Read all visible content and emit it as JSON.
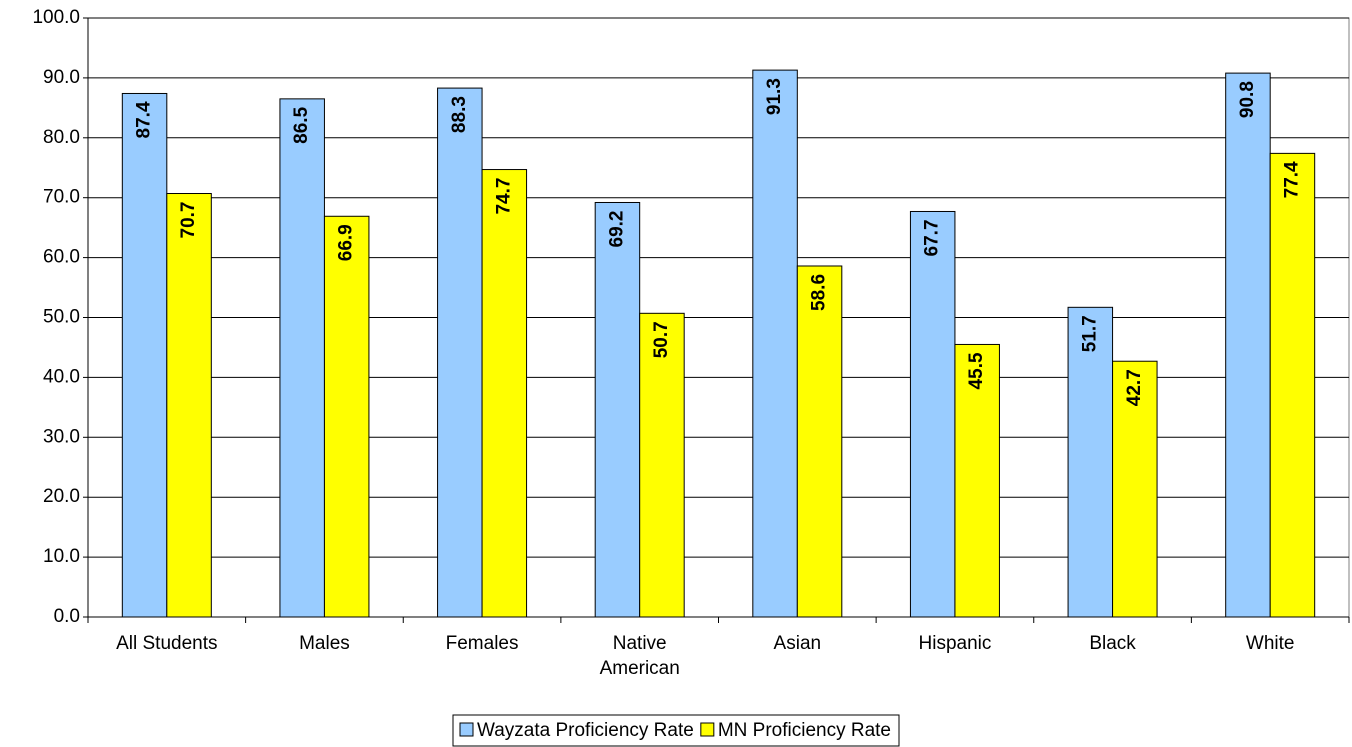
{
  "chart_data": {
    "type": "bar",
    "categories": [
      "All Students",
      "Males",
      "Females",
      "Native American",
      "Asian",
      "Hispanic",
      "Black",
      "White"
    ],
    "series": [
      {
        "name": "Wayzata Proficiency Rate",
        "color": "#99ccff",
        "values": [
          87.4,
          86.5,
          88.3,
          69.2,
          91.3,
          67.7,
          51.7,
          90.8
        ]
      },
      {
        "name": "MN Proficiency Rate",
        "color": "#ffff00",
        "values": [
          70.7,
          66.9,
          74.7,
          50.7,
          58.6,
          45.5,
          42.7,
          77.4
        ]
      }
    ],
    "ylim": [
      0,
      100
    ],
    "yticks": [
      {
        "value": 0,
        "label": "0.0"
      },
      {
        "value": 10,
        "label": "10.0"
      },
      {
        "value": 20,
        "label": "20.0"
      },
      {
        "value": 30,
        "label": "30.0"
      },
      {
        "value": 40,
        "label": "40.0"
      },
      {
        "value": 50,
        "label": "50.0"
      },
      {
        "value": 60,
        "label": "60.0"
      },
      {
        "value": 70,
        "label": "70.0"
      },
      {
        "value": 80,
        "label": "80.0"
      },
      {
        "value": 90,
        "label": "90.0"
      },
      {
        "value": 100,
        "label": "100.0"
      }
    ],
    "grid": true,
    "legend": "bottom"
  }
}
